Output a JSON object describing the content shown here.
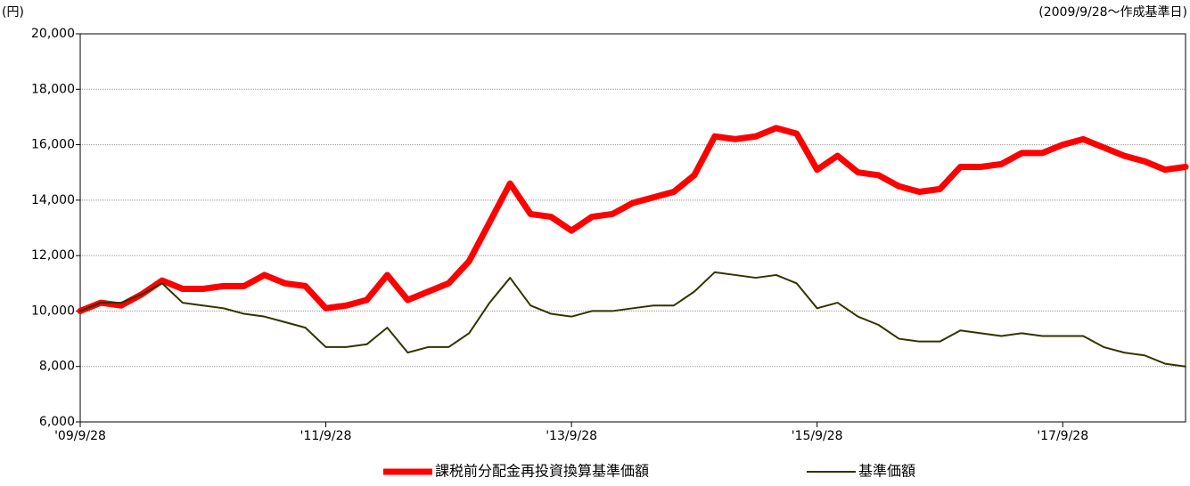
{
  "chart_data": {
    "type": "line",
    "y_unit": "(円)",
    "note": "(2009/9/28～作成基準日)",
    "categories": [
      "'09/9/28",
      null,
      null,
      null,
      null,
      null,
      null,
      null,
      null,
      null,
      null,
      null,
      "'11/9/28",
      null,
      null,
      null,
      null,
      null,
      null,
      null,
      null,
      null,
      null,
      null,
      "'13/9/28",
      null,
      null,
      null,
      null,
      null,
      null,
      null,
      null,
      null,
      null,
      null,
      "'15/9/28",
      null,
      null,
      null,
      null,
      null,
      null,
      null,
      null,
      null,
      null,
      null,
      "'17/9/28",
      null,
      null,
      null,
      null,
      null,
      null
    ],
    "series": [
      {
        "name": "課税前分配金再投資換算基準価額",
        "color": "#ff0000",
        "values": [
          10000,
          10300,
          10200,
          10600,
          11100,
          10800,
          10800,
          10900,
          10900,
          11300,
          11000,
          10900,
          10100,
          10200,
          10400,
          11300,
          10400,
          10700,
          11000,
          11800,
          13200,
          14600,
          13500,
          13400,
          12900,
          13400,
          13500,
          13900,
          14100,
          14300,
          14900,
          16300,
          16200,
          16300,
          16600,
          16400,
          15100,
          15600,
          15000,
          14900,
          14500,
          14300,
          14400,
          15200,
          15200,
          15300,
          15700,
          15700,
          16000,
          16200,
          15900,
          15600,
          15400,
          15100,
          15200
        ]
      },
      {
        "name": "基準価額",
        "color": "#333300",
        "values": [
          10000,
          10300,
          10300,
          10600,
          11000,
          10300,
          10200,
          10100,
          9900,
          9800,
          9600,
          9400,
          8700,
          8700,
          8800,
          9400,
          8500,
          8700,
          8700,
          9200,
          10300,
          11200,
          10200,
          9900,
          9800,
          10000,
          10000,
          10100,
          10200,
          10200,
          10700,
          11400,
          11300,
          11200,
          11300,
          11000,
          10100,
          10300,
          9800,
          9500,
          9000,
          8900,
          8900,
          9300,
          9200,
          9100,
          9200,
          9100,
          9100,
          9100,
          8700,
          8500,
          8400,
          8100,
          8000
        ]
      }
    ],
    "ylim": [
      6000,
      20000
    ],
    "yticks": [
      {
        "value": 6000,
        "label": "6,000"
      },
      {
        "value": 8000,
        "label": "8,000"
      },
      {
        "value": 10000,
        "label": "10,000"
      },
      {
        "value": 12000,
        "label": "12,000"
      },
      {
        "value": 14000,
        "label": "14,000"
      },
      {
        "value": 16000,
        "label": "16,000"
      },
      {
        "value": 18000,
        "label": "18,000"
      },
      {
        "value": 20000,
        "label": "20,000"
      }
    ],
    "grid": true
  }
}
